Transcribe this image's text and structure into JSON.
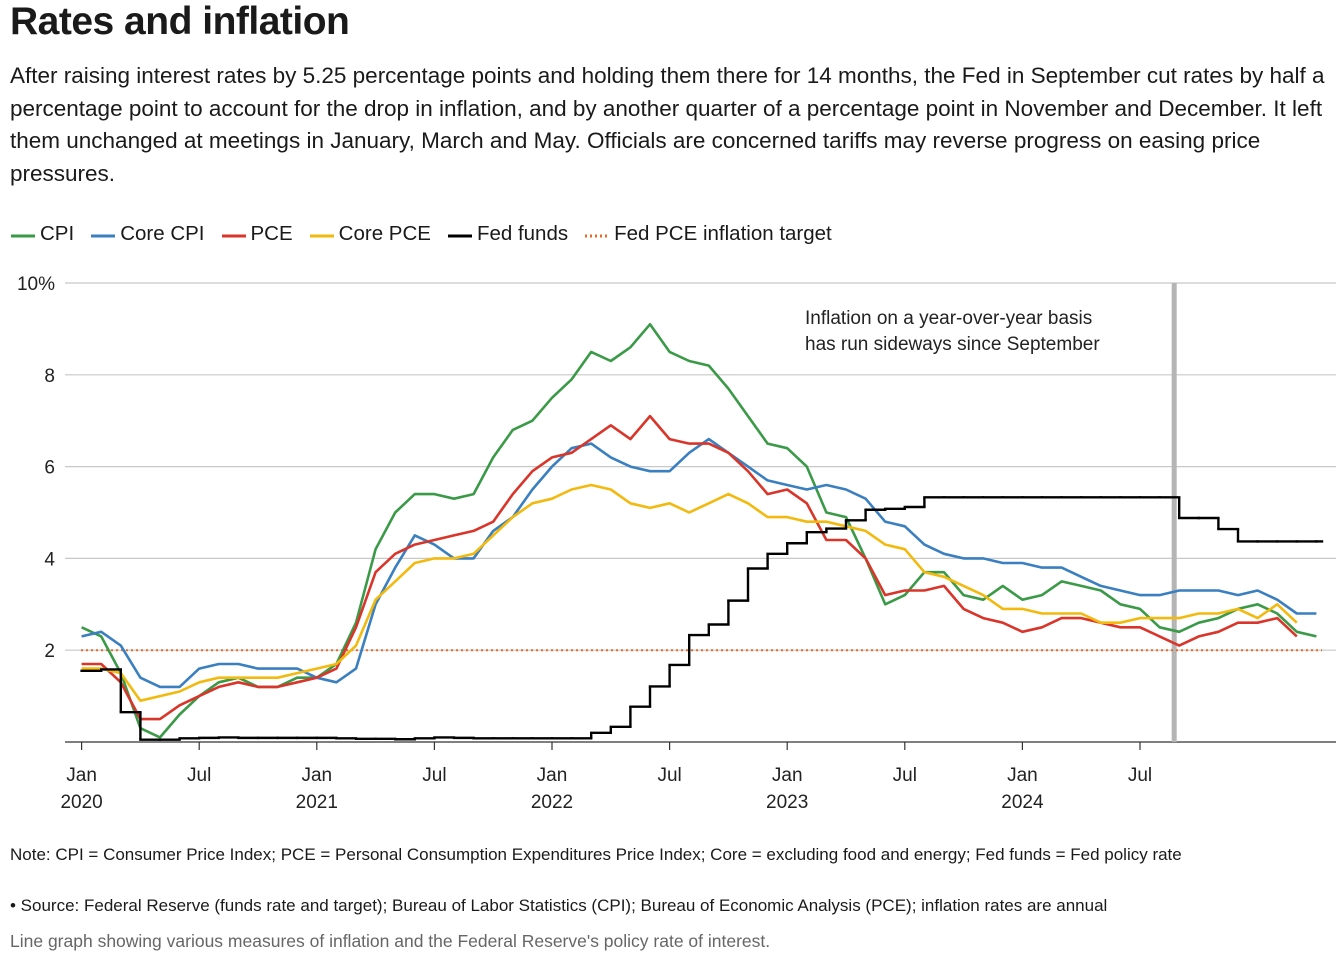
{
  "header": {
    "title": "Rates and inflation",
    "subtitle": "After raising interest rates by 5.25 percentage points and holding them there for 14 months, the Fed in September cut rates by half a percentage point to account for the drop in inflation, and by another quarter of a percentage point in November and December. It left them unchanged at meetings in January, March and May. Officials are concerned tariffs may reverse progress on easing price pressures."
  },
  "chart_data": {
    "type": "line",
    "x": [
      "2020-01",
      "2020-02",
      "2020-03",
      "2020-04",
      "2020-05",
      "2020-06",
      "2020-07",
      "2020-08",
      "2020-09",
      "2020-10",
      "2020-11",
      "2020-12",
      "2021-01",
      "2021-02",
      "2021-03",
      "2021-04",
      "2021-05",
      "2021-06",
      "2021-07",
      "2021-08",
      "2021-09",
      "2021-10",
      "2021-11",
      "2021-12",
      "2022-01",
      "2022-02",
      "2022-03",
      "2022-04",
      "2022-05",
      "2022-06",
      "2022-07",
      "2022-08",
      "2022-09",
      "2022-10",
      "2022-11",
      "2022-12",
      "2023-01",
      "2023-02",
      "2023-03",
      "2023-04",
      "2023-05",
      "2023-06",
      "2023-07",
      "2023-08",
      "2023-09",
      "2023-10",
      "2023-11",
      "2023-12",
      "2024-01",
      "2024-02",
      "2024-03",
      "2024-04",
      "2024-05",
      "2024-06",
      "2024-07",
      "2024-08",
      "2024-09",
      "2024-10",
      "2024-11",
      "2024-12",
      "2025-01",
      "2025-02",
      "2025-03",
      "2025-04"
    ],
    "series": [
      {
        "name": "CPI",
        "color": "#3a9a47",
        "values": [
          2.5,
          2.3,
          1.5,
          0.3,
          0.1,
          0.6,
          1.0,
          1.3,
          1.4,
          1.2,
          1.2,
          1.4,
          1.4,
          1.7,
          2.6,
          4.2,
          5.0,
          5.4,
          5.4,
          5.3,
          5.4,
          6.2,
          6.8,
          7.0,
          7.5,
          7.9,
          8.5,
          8.3,
          8.6,
          9.1,
          8.5,
          8.3,
          8.2,
          7.7,
          7.1,
          6.5,
          6.4,
          6.0,
          5.0,
          4.9,
          4.0,
          3.0,
          3.2,
          3.7,
          3.7,
          3.2,
          3.1,
          3.4,
          3.1,
          3.2,
          3.5,
          3.4,
          3.3,
          3.0,
          2.9,
          2.5,
          2.4,
          2.6,
          2.7,
          2.9,
          3.0,
          2.8,
          2.4,
          2.3
        ]
      },
      {
        "name": "Core CPI",
        "color": "#3a7fc0",
        "values": [
          2.3,
          2.4,
          2.1,
          1.4,
          1.2,
          1.2,
          1.6,
          1.7,
          1.7,
          1.6,
          1.6,
          1.6,
          1.4,
          1.3,
          1.6,
          3.0,
          3.8,
          4.5,
          4.3,
          4.0,
          4.0,
          4.6,
          4.9,
          5.5,
          6.0,
          6.4,
          6.5,
          6.2,
          6.0,
          5.9,
          5.9,
          6.3,
          6.6,
          6.3,
          6.0,
          5.7,
          5.6,
          5.5,
          5.6,
          5.5,
          5.3,
          4.8,
          4.7,
          4.3,
          4.1,
          4.0,
          4.0,
          3.9,
          3.9,
          3.8,
          3.8,
          3.6,
          3.4,
          3.3,
          3.2,
          3.2,
          3.3,
          3.3,
          3.3,
          3.2,
          3.3,
          3.1,
          2.8,
          2.8
        ]
      },
      {
        "name": "PCE",
        "color": "#d9352a",
        "values": [
          1.7,
          1.7,
          1.3,
          0.5,
          0.5,
          0.8,
          1.0,
          1.2,
          1.3,
          1.2,
          1.2,
          1.3,
          1.4,
          1.6,
          2.5,
          3.7,
          4.1,
          4.3,
          4.4,
          4.5,
          4.6,
          4.8,
          5.4,
          5.9,
          6.2,
          6.3,
          6.6,
          6.9,
          6.6,
          7.1,
          6.6,
          6.5,
          6.5,
          6.3,
          5.9,
          5.4,
          5.5,
          5.2,
          4.4,
          4.4,
          4.0,
          3.2,
          3.3,
          3.3,
          3.4,
          2.9,
          2.7,
          2.6,
          2.4,
          2.5,
          2.7,
          2.7,
          2.6,
          2.5,
          2.5,
          2.3,
          2.1,
          2.3,
          2.4,
          2.6,
          2.6,
          2.7,
          2.3,
          null
        ]
      },
      {
        "name": "Core PCE",
        "color": "#f2b90f",
        "values": [
          1.6,
          1.6,
          1.5,
          0.9,
          1.0,
          1.1,
          1.3,
          1.4,
          1.4,
          1.4,
          1.4,
          1.5,
          1.6,
          1.7,
          2.1,
          3.1,
          3.5,
          3.9,
          4.0,
          4.0,
          4.1,
          4.5,
          4.9,
          5.2,
          5.3,
          5.5,
          5.6,
          5.5,
          5.2,
          5.1,
          5.2,
          5.0,
          5.2,
          5.4,
          5.2,
          4.9,
          4.9,
          4.8,
          4.8,
          4.7,
          4.6,
          4.3,
          4.2,
          3.7,
          3.6,
          3.4,
          3.2,
          2.9,
          2.9,
          2.8,
          2.8,
          2.8,
          2.6,
          2.6,
          2.7,
          2.7,
          2.7,
          2.8,
          2.8,
          2.9,
          2.7,
          3.0,
          2.6,
          null
        ]
      },
      {
        "name": "Fed funds",
        "color": "#000000",
        "step": true,
        "values": [
          1.55,
          1.58,
          0.65,
          0.05,
          0.05,
          0.08,
          0.09,
          0.1,
          0.09,
          0.09,
          0.09,
          0.09,
          0.09,
          0.08,
          0.07,
          0.07,
          0.06,
          0.08,
          0.1,
          0.09,
          0.08,
          0.08,
          0.08,
          0.08,
          0.08,
          0.08,
          0.2,
          0.33,
          0.77,
          1.21,
          1.68,
          2.33,
          2.56,
          3.08,
          3.78,
          4.1,
          4.33,
          4.57,
          4.65,
          4.83,
          5.06,
          5.08,
          5.12,
          5.33,
          5.33,
          5.33,
          5.33,
          5.33,
          5.33,
          5.33,
          5.33,
          5.33,
          5.33,
          5.33,
          5.33,
          5.33,
          4.88,
          4.88,
          4.64,
          4.37,
          4.37,
          4.37,
          4.37,
          4.37
        ]
      }
    ],
    "target": {
      "name": "Fed PCE inflation target",
      "value": 2,
      "color": "#e8692a"
    },
    "annotation": {
      "text": [
        "Inflation on a year-over-year basis",
        "has run sideways since September"
      ],
      "x": "2024-09"
    },
    "xlim": [
      "2019-12",
      "2025-05"
    ],
    "xticks": [
      {
        "value": "2020-01",
        "label": "Jan",
        "year": "2020"
      },
      {
        "value": "2020-07",
        "label": "Jul"
      },
      {
        "value": "2021-01",
        "label": "Jan",
        "year": "2021"
      },
      {
        "value": "2021-07",
        "label": "Jul"
      },
      {
        "value": "2022-01",
        "label": "Jan",
        "year": "2022"
      },
      {
        "value": "2022-07",
        "label": "Jul"
      },
      {
        "value": "2023-01",
        "label": "Jan",
        "year": "2023"
      },
      {
        "value": "2023-07",
        "label": "Jul"
      },
      {
        "value": "2024-01",
        "label": "Jan",
        "year": "2024"
      },
      {
        "value": "2024-07",
        "label": "Jul"
      }
    ],
    "ylim": [
      0,
      10
    ],
    "yticks": [
      2,
      4,
      6,
      8,
      {
        "value": 10,
        "label": "10%"
      }
    ],
    "grid": true
  },
  "footer": {
    "note": "Note: CPI = Consumer Price Index; PCE = Personal Consumption Expenditures Price Index; Core = excluding food and energy; Fed funds = Fed policy rate",
    "source": "• Source: Federal Reserve (funds rate and target); Bureau of Labor Statistics (CPI); Bureau of Economic Analysis (PCE); inflation rates are annual",
    "description": "Line graph showing various measures of inflation and the Federal Reserve's policy rate of interest."
  }
}
